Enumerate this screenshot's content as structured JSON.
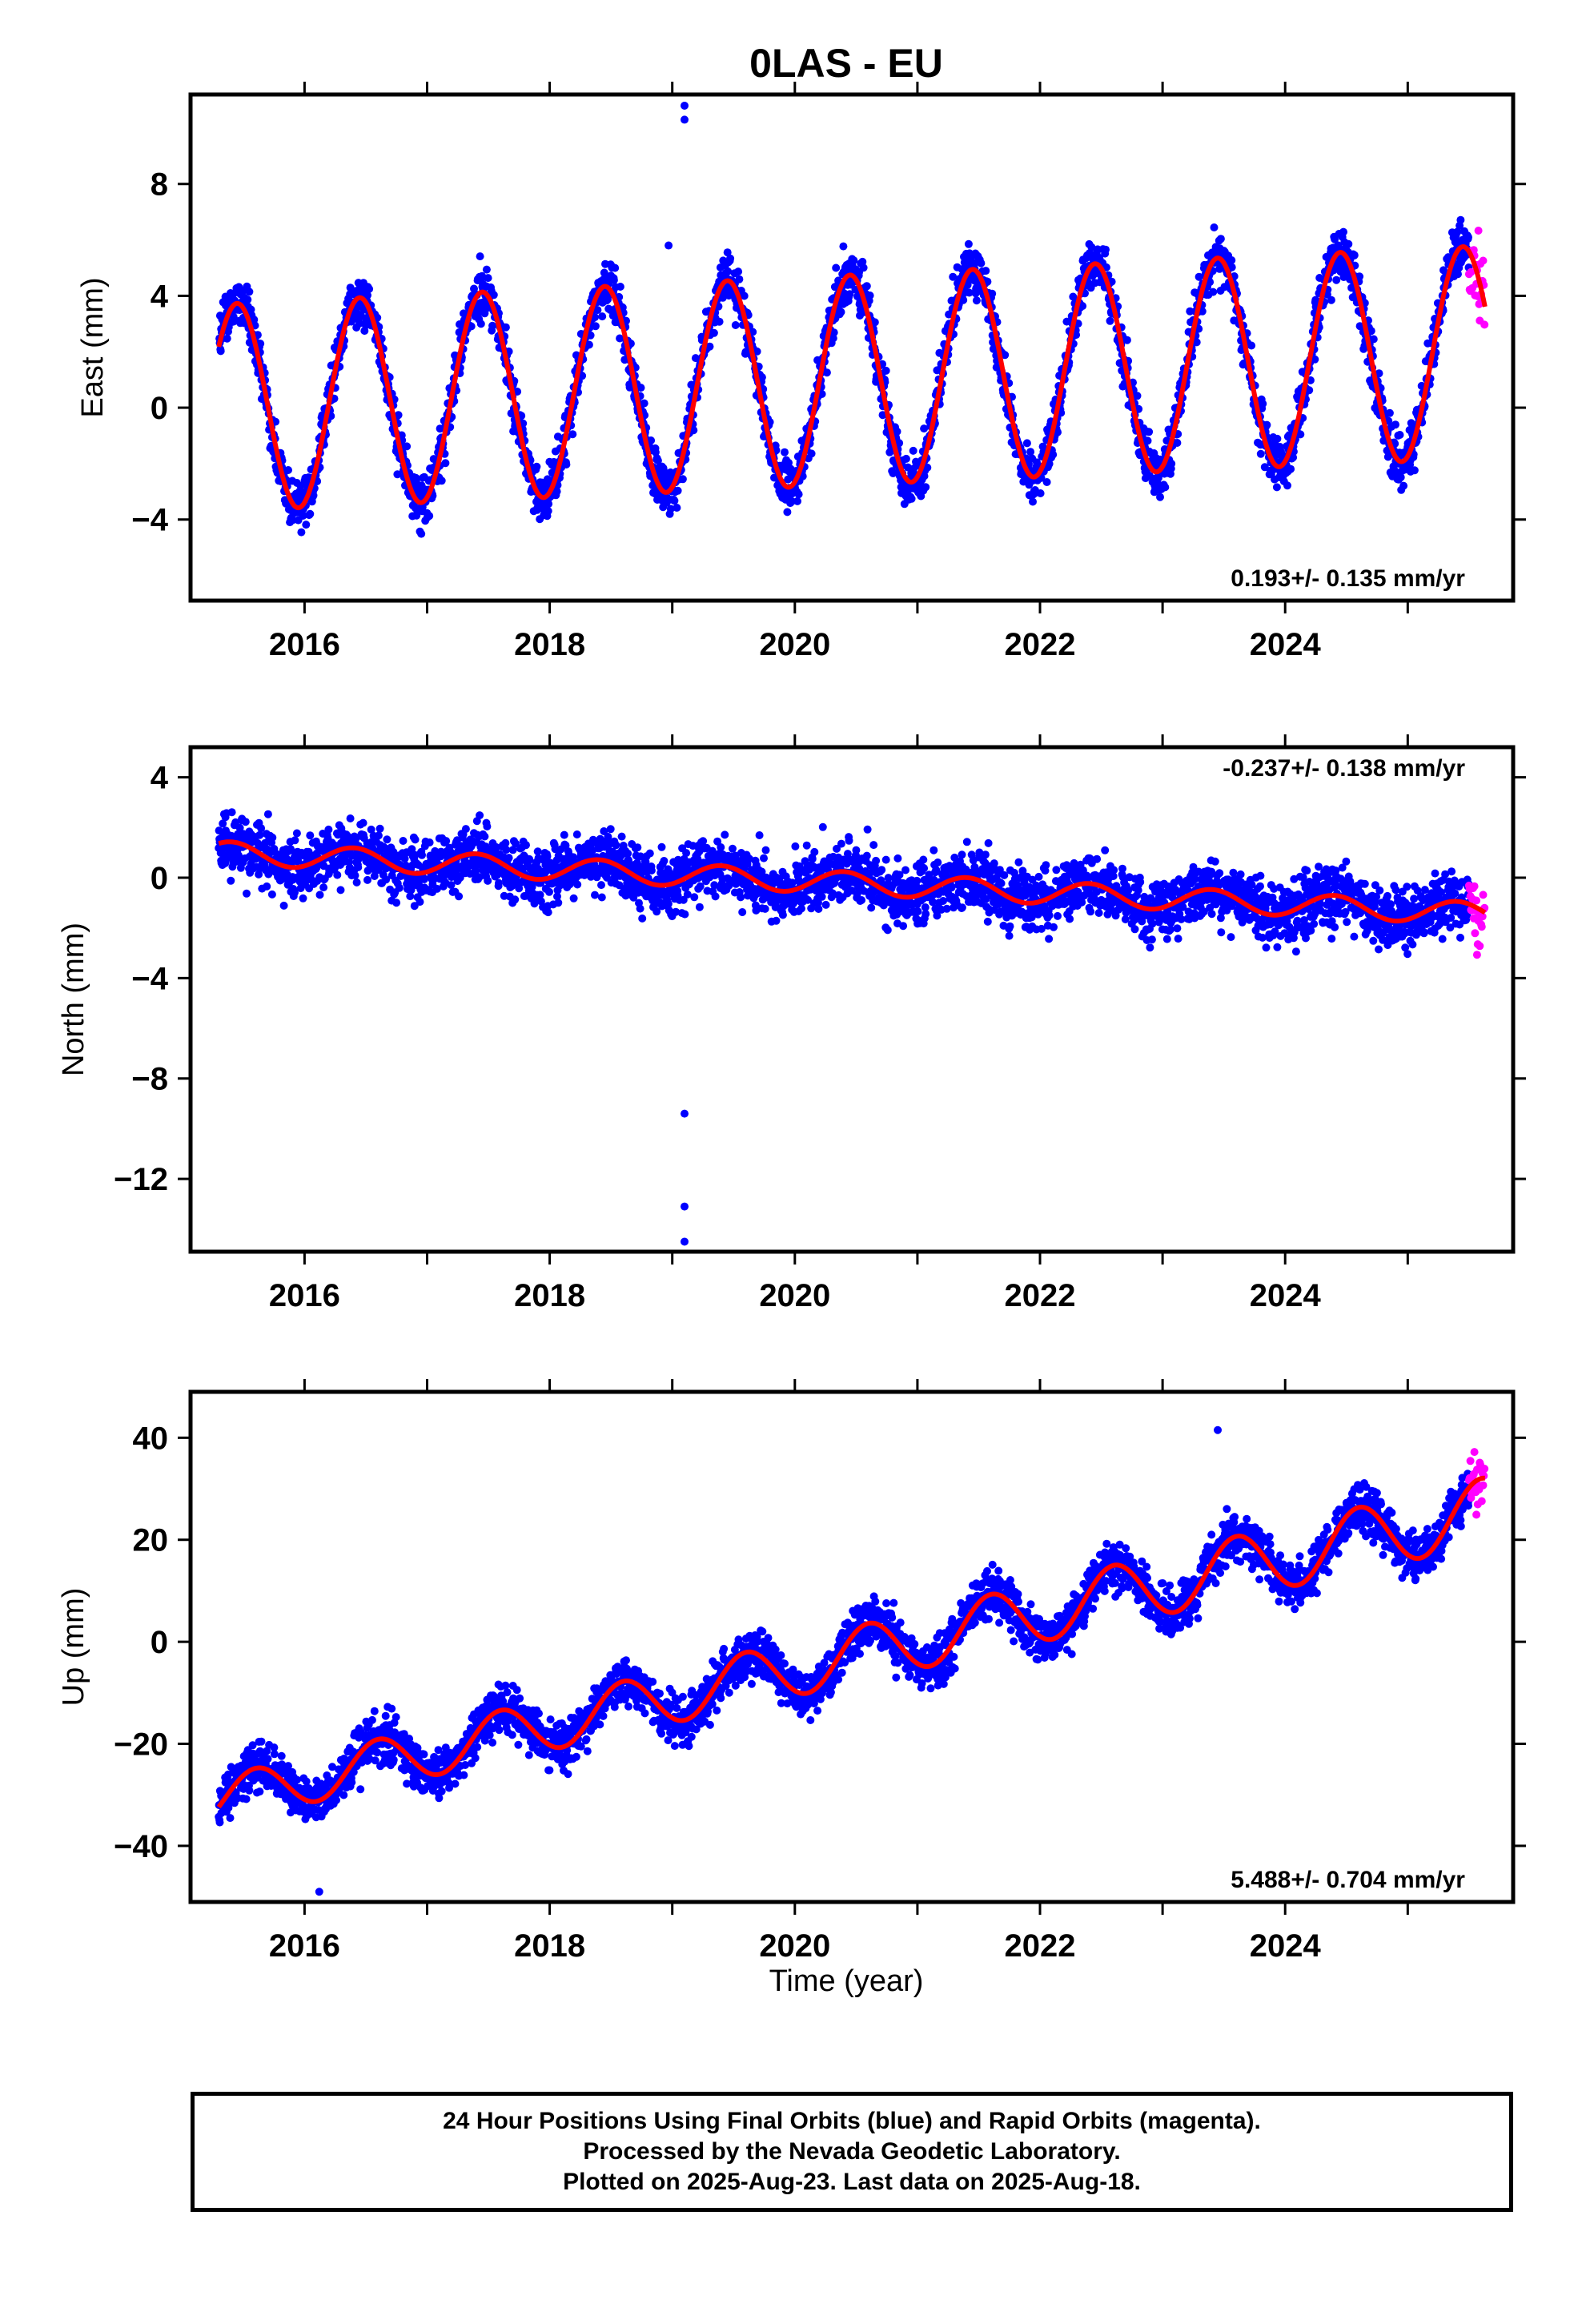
{
  "title": "0LAS - EU",
  "xlabel": "Time (year)",
  "footer": {
    "line1": "24 Hour Positions Using Final Orbits (blue) and Rapid Orbits (magenta).",
    "line2": "Processed by the Nevada Geodetic Laboratory.",
    "line3": "Plotted on 2025-Aug-23. Last data on 2025-Aug-18."
  },
  "colors": {
    "final": "#0000ff",
    "rapid": "#ff00ff",
    "fit": "#ff0000",
    "frame": "#000000"
  },
  "chart_data": [
    {
      "type": "scatter",
      "ylabel": "East (mm)",
      "rate_label": "0.193+/- 0.135 mm/yr",
      "rate_position": "bottom-right",
      "xlim": [
        2015.07,
        2025.86
      ],
      "ylim": [
        -6.9,
        11.2
      ],
      "xticks": [
        2016,
        2018,
        2020,
        2022,
        2024
      ],
      "xtick_labels": [
        "2016",
        "2018",
        "2020",
        "2022",
        "2024"
      ],
      "yticks": [
        -4,
        0,
        4,
        8
      ],
      "ytick_labels": [
        "−4",
        "0",
        "4",
        "8"
      ],
      "data_range": [
        2015.3,
        2025.63
      ],
      "rapid_range": [
        2025.5,
        2025.63
      ],
      "fit": {
        "offset_at_start": 0.0,
        "rate": 0.193,
        "amp_start": 3.7,
        "amp_end": 3.8,
        "phase_peak": 0.45
      },
      "outliers": [
        {
          "x": 2019.1,
          "y": 10.8
        },
        {
          "x": 2019.1,
          "y": 10.3
        },
        {
          "x": 2018.97,
          "y": 5.8
        }
      ]
    },
    {
      "type": "scatter",
      "ylabel": "North (mm)",
      "rate_label": "-0.237+/- 0.138 mm/yr",
      "rate_position": "top-right",
      "xlim": [
        2015.07,
        2025.86
      ],
      "ylim": [
        -14.9,
        5.2
      ],
      "xticks": [
        2016,
        2018,
        2020,
        2022,
        2024
      ],
      "xtick_labels": [
        "2016",
        "2018",
        "2020",
        "2022",
        "2024"
      ],
      "yticks": [
        -12,
        -8,
        -4,
        0,
        4
      ],
      "ytick_labels": [
        "−12",
        "−8",
        "−4",
        "0",
        "4"
      ],
      "data_range": [
        2015.3,
        2025.63
      ],
      "rapid_range": [
        2025.5,
        2025.63
      ],
      "fit": {
        "offset_at_start": 1.0,
        "rate": -0.237,
        "amp_start": 0.45,
        "amp_end": 0.45,
        "phase_peak": 0.4
      },
      "outliers": [
        {
          "x": 2019.1,
          "y": -9.4
        },
        {
          "x": 2019.1,
          "y": -13.1
        },
        {
          "x": 2019.1,
          "y": -14.5
        }
      ]
    },
    {
      "type": "scatter",
      "ylabel": "Up (mm)",
      "rate_label": "5.488+/- 0.704 mm/yr",
      "rate_position": "bottom-right",
      "xlim": [
        2015.07,
        2025.86
      ],
      "ylim": [
        -51,
        49
      ],
      "xticks": [
        2016,
        2018,
        2020,
        2022,
        2024
      ],
      "xtick_labels": [
        "2016",
        "2018",
        "2020",
        "2022",
        "2024"
      ],
      "yticks": [
        -40,
        -20,
        0,
        20,
        40
      ],
      "ytick_labels": [
        "−40",
        "−20",
        "0",
        "20",
        "40"
      ],
      "data_range": [
        2015.3,
        2025.63
      ],
      "rapid_range": [
        2025.5,
        2025.63
      ],
      "fit": {
        "offset_at_start": -31,
        "rate": 5.488,
        "amp_start": 4.5,
        "amp_end": 6.5,
        "phase_peak": 0.6
      },
      "outliers": [
        {
          "x": 2016.12,
          "y": -49
        },
        {
          "x": 2023.45,
          "y": 41.5
        }
      ]
    }
  ]
}
